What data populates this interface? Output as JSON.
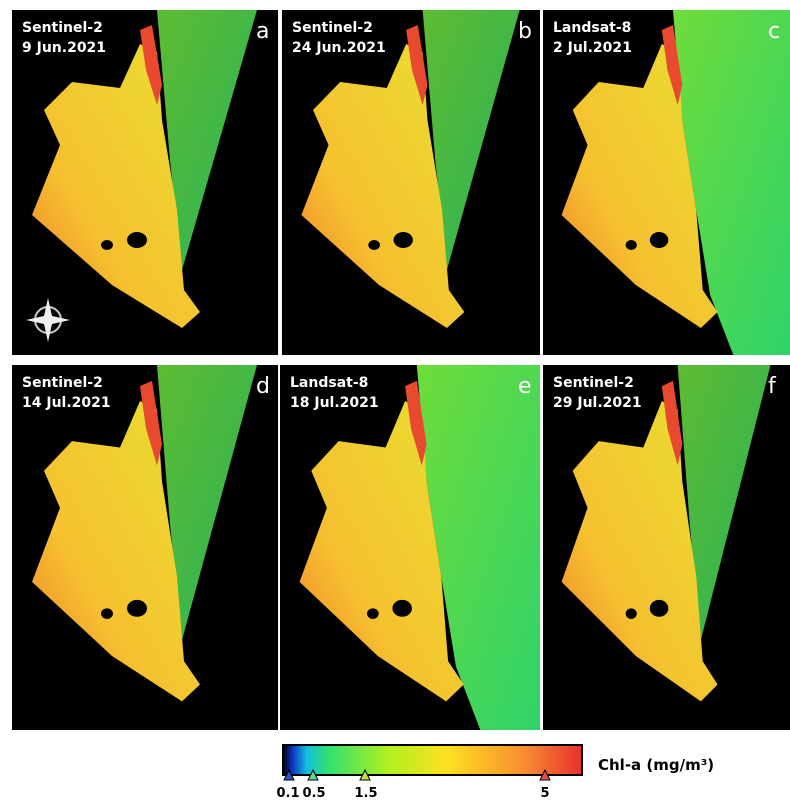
{
  "panels": [
    {
      "sensor": "Sentinel-2",
      "date": "9 Jun.2021",
      "letter": "a"
    },
    {
      "sensor": "Sentinel-2",
      "date": "24 Jun.2021",
      "letter": "b"
    },
    {
      "sensor": "Landsat-8",
      "date": "2 Jul.2021",
      "letter": "c"
    },
    {
      "sensor": "Sentinel-2",
      "date": "14 Jul.2021",
      "letter": "d"
    },
    {
      "sensor": "Landsat-8",
      "date": "18 Jul.2021",
      "letter": "e"
    },
    {
      "sensor": "Sentinel-2",
      "date": "29 Jul.2021",
      "letter": "f"
    }
  ],
  "colorbar": {
    "label": "Chl-a (mg/m³)",
    "ticks": [
      "0.1",
      "0.5",
      "1.5",
      "5"
    ]
  }
}
